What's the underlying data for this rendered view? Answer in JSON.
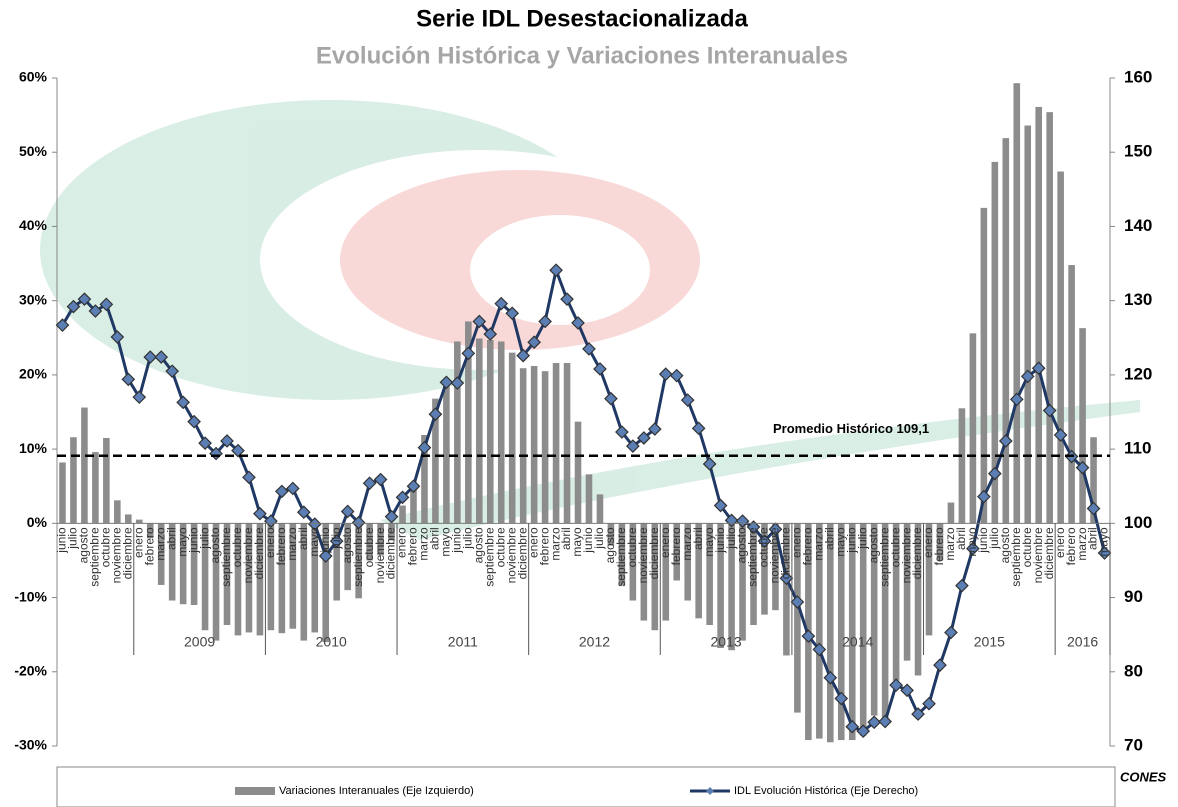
{
  "chart_data": {
    "type": "combo",
    "title": "Serie IDL Desestacionalizada",
    "subtitle": "Evolución Histórica y Variaciones Interanuales",
    "categories": [
      "junio",
      "julio",
      "agosto",
      "septiembre",
      "octubre",
      "noviembre",
      "diciembre",
      "enero",
      "febrero",
      "marzo",
      "abril",
      "mayo",
      "junio",
      "julio",
      "agosto",
      "septiembre",
      "octubre",
      "noviembre",
      "diciembre",
      "enero",
      "febrero",
      "marzo",
      "abril",
      "mayo",
      "junio",
      "julio",
      "agosto",
      "septiembre",
      "octubre",
      "noviembre",
      "diciembre",
      "enero",
      "febrero",
      "marzo",
      "abril",
      "mayo",
      "junio",
      "julio",
      "agosto",
      "septiembre",
      "octubre",
      "noviembre",
      "diciembre",
      "enero",
      "febrero",
      "marzo",
      "abril",
      "mayo",
      "junio",
      "julio",
      "agosto",
      "septiembre",
      "octubre",
      "noviembre",
      "diciembre",
      "enero",
      "febrero",
      "marzo",
      "abril",
      "mayo",
      "junio",
      "julio",
      "agosto",
      "septiembre",
      "octubre",
      "noviembre",
      "diciembre",
      "enero",
      "febrero",
      "marzo",
      "abril",
      "mayo",
      "junio",
      "julio",
      "agosto",
      "septiembre",
      "octubre",
      "noviembre",
      "diciembre",
      "enero",
      "febrero",
      "marzo",
      "abril",
      "mayo",
      "junio",
      "julio",
      "agosto",
      "septiembre",
      "octubre",
      "noviembre",
      "diciembre",
      "enero",
      "febrero",
      "marzo",
      "abril",
      "mayo"
    ],
    "year_labels": [
      "2009",
      "2010",
      "2011",
      "2012",
      "2013",
      "2014",
      "2015",
      "2016"
    ],
    "series": [
      {
        "name": "Variaciones Interanuales (Eje Izquierdo)",
        "type": "bar",
        "axis": "y",
        "color": "#8c8c8c",
        "values": [
          8.2,
          11.6,
          15.6,
          9.6,
          11.5,
          3.1,
          1.2,
          0.5,
          -2.0,
          -8.3,
          -10.4,
          -10.9,
          -11.0,
          -14.4,
          -15.8,
          -13.7,
          -15.1,
          -14.7,
          -15.1,
          -14.4,
          -14.8,
          -14.2,
          -15.8,
          -14.7,
          -16.0,
          -10.4,
          -9.0,
          -10.1,
          -5.0,
          -4.3,
          -2.3,
          2.4,
          5.5,
          11.9,
          16.8,
          18.6,
          24.5,
          27.2,
          24.9,
          24.7,
          24.5,
          23.0,
          20.9,
          21.2,
          20.5,
          21.6,
          21.6,
          13.7,
          6.6,
          3.9,
          -3.0,
          -8.4,
          -10.4,
          -13.1,
          -14.4,
          -13.1,
          -7.7,
          -10.4,
          -12.8,
          -13.7,
          -16.8,
          -17.1,
          -15.8,
          -13.7,
          -12.3,
          -11.7,
          -17.8,
          -25.5,
          -29.2,
          -29.0,
          -29.5,
          -29.2,
          -29.2,
          -28.6,
          -25.9,
          -26.5,
          -21.2,
          -18.5,
          -20.5,
          -15.1,
          -5.0,
          2.8,
          15.5,
          25.6,
          42.5,
          48.7,
          51.9,
          59.3,
          53.6,
          56.1,
          55.4,
          47.4,
          34.8,
          26.3,
          11.6,
          null
        ]
      },
      {
        "name": "IDL Evolución Histórica (Eje Derecho)",
        "type": "line",
        "axis": "y2",
        "color": "#1f3864",
        "marker_color": "#5b7fb5",
        "values": [
          126.7,
          129.2,
          130.2,
          128.6,
          129.5,
          125.1,
          119.4,
          117.0,
          122.4,
          122.4,
          120.5,
          116.3,
          113.7,
          110.8,
          109.4,
          111.1,
          109.8,
          106.2,
          101.3,
          100.3,
          104.3,
          104.7,
          101.5,
          99.9,
          95.6,
          97.6,
          101.6,
          100.1,
          105.4,
          105.9,
          100.9,
          103.5,
          105.0,
          110.2,
          114.7,
          119.0,
          118.9,
          122.9,
          127.2,
          125.5,
          129.6,
          128.3,
          122.6,
          124.4,
          127.2,
          134.1,
          130.2,
          127.0,
          123.5,
          120.8,
          116.8,
          112.3,
          110.4,
          111.5,
          112.7,
          120.1,
          119.9,
          116.6,
          112.8,
          108.0,
          102.4,
          100.4,
          100.3,
          99.5,
          97.6,
          99.2,
          92.6,
          89.4,
          84.8,
          83.0,
          79.2,
          76.4,
          72.6,
          72.0,
          73.2,
          73.3,
          78.2,
          77.5,
          74.3,
          75.7,
          80.9,
          85.3,
          91.6,
          96.6,
          103.6,
          106.7,
          111.1,
          116.7,
          119.8,
          120.9,
          115.2,
          111.9,
          109.0,
          107.5,
          102.0,
          96.0
        ]
      }
    ],
    "ylim": [
      -30,
      60
    ],
    "yticks": [
      {
        "value": -30,
        "label": "-30%"
      },
      {
        "value": -20,
        "label": "-20%"
      },
      {
        "value": -10,
        "label": "-10%"
      },
      {
        "value": 0,
        "label": "0%"
      },
      {
        "value": 10,
        "label": "10%"
      },
      {
        "value": 20,
        "label": "20%"
      },
      {
        "value": 30,
        "label": "30%"
      },
      {
        "value": 40,
        "label": "40%"
      },
      {
        "value": 50,
        "label": "50%"
      },
      {
        "value": 60,
        "label": "60%"
      }
    ],
    "y2lim": [
      70,
      160
    ],
    "y2ticks": [
      70,
      80,
      90,
      100,
      110,
      120,
      130,
      140,
      150,
      160
    ],
    "average_line": {
      "value": 109.1,
      "axis": "y2",
      "label": "Promedio Histórico  109,1"
    },
    "corner_text": "CONES",
    "legend": "bottom"
  }
}
